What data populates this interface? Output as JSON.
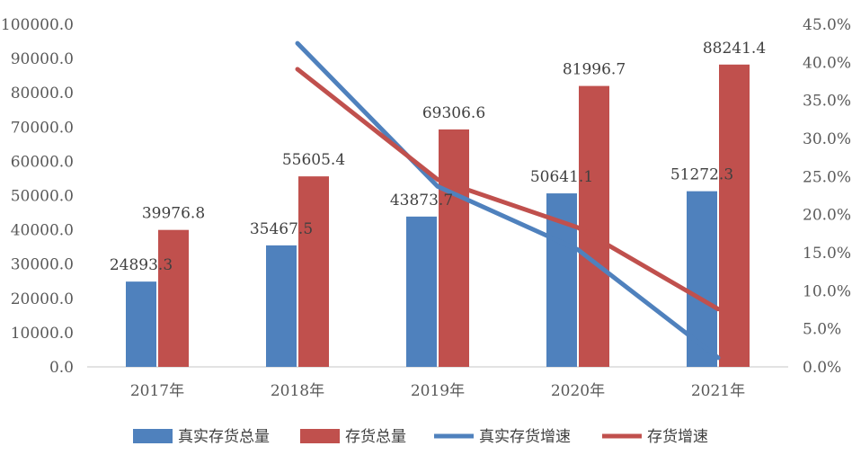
{
  "chart_data": {
    "type": "bar",
    "categories": [
      "2017年",
      "2018年",
      "2019年",
      "2020年",
      "2021年"
    ],
    "series": [
      {
        "name": "真实存货总量",
        "kind": "bar",
        "axis": "left",
        "color": "#4F81BD",
        "values": [
          24893.3,
          35467.5,
          43873.7,
          50641.1,
          51272.3
        ],
        "labels": [
          "24893.3",
          "35467.5",
          "43873.7",
          "50641.1",
          "51272.3"
        ]
      },
      {
        "name": "存货总量",
        "kind": "bar",
        "axis": "left",
        "color": "#C0504D",
        "values": [
          39976.8,
          55605.4,
          69306.6,
          81996.7,
          88241.4
        ],
        "labels": [
          "39976.8",
          "55605.4",
          "69306.6",
          "81996.7",
          "88241.4"
        ]
      },
      {
        "name": "真实存货增速",
        "kind": "line",
        "axis": "right",
        "color": "#4F81BD",
        "values": [
          null,
          42.5,
          23.7,
          15.4,
          1.2
        ]
      },
      {
        "name": "存货增速",
        "kind": "line",
        "axis": "right",
        "color": "#C0504D",
        "values": [
          null,
          39.1,
          24.6,
          18.3,
          7.6
        ]
      }
    ],
    "y_left": {
      "min": 0,
      "max": 100000,
      "ticks": [
        "0.0",
        "10000.0",
        "20000.0",
        "30000.0",
        "40000.0",
        "50000.0",
        "60000.0",
        "70000.0",
        "80000.0",
        "90000.0",
        "100000.0"
      ]
    },
    "y_right": {
      "min": 0,
      "max": 45,
      "ticks": [
        "0.0%",
        "5.0%",
        "10.0%",
        "15.0%",
        "20.0%",
        "25.0%",
        "30.0%",
        "35.0%",
        "40.0%",
        "45.0%"
      ]
    },
    "grid": false,
    "legend_position": "bottom"
  }
}
